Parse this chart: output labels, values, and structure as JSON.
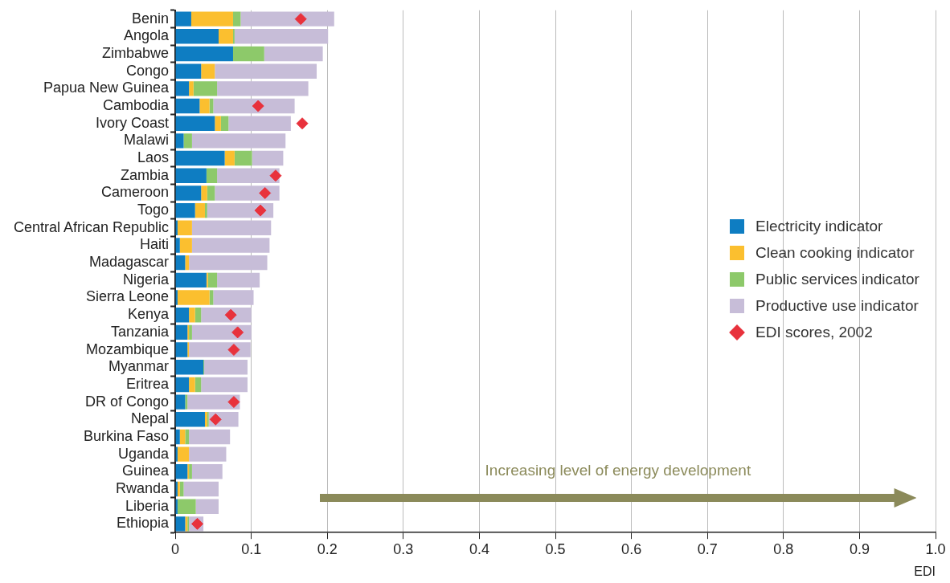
{
  "chart_data": {
    "type": "bar",
    "orientation": "horizontal",
    "stacked": true,
    "categories": [
      "Benin",
      "Angola",
      "Zimbabwe",
      "Congo",
      "Papua New Guinea",
      "Cambodia",
      "Ivory Coast",
      "Malawi",
      "Laos",
      "Zambia",
      "Cameroon",
      "Togo",
      "Central African Republic",
      "Haiti",
      "Madagascar",
      "Nigeria",
      "Sierra Leone",
      "Kenya",
      "Tanzania",
      "Mozambique",
      "Myanmar",
      "Eritrea",
      "DR of Congo",
      "Nepal",
      "Burkina Faso",
      "Uganda",
      "Guinea",
      "Rwanda",
      "Liberia",
      "Ethiopia"
    ],
    "series": [
      {
        "name": "Electricity indicator",
        "color": "#0e7dc2",
        "values": [
          0.021,
          0.057,
          0.076,
          0.034,
          0.018,
          0.032,
          0.052,
          0.011,
          0.065,
          0.041,
          0.034,
          0.026,
          0.003,
          0.006,
          0.013,
          0.041,
          0.003,
          0.018,
          0.016,
          0.016,
          0.037,
          0.018,
          0.013,
          0.039,
          0.006,
          0.003,
          0.016,
          0.003,
          0.003,
          0.013
        ]
      },
      {
        "name": "Clean cooking indicator",
        "color": "#fbbf2f",
        "values": [
          0.055,
          0.019,
          0,
          0.018,
          0.006,
          0.013,
          0.008,
          0,
          0.013,
          0,
          0.008,
          0.013,
          0.019,
          0.016,
          0.005,
          0.002,
          0.042,
          0.008,
          0.002,
          0.002,
          0,
          0.008,
          0,
          0.003,
          0.007,
          0.015,
          0.002,
          0.003,
          0,
          0.003
        ]
      },
      {
        "name": "Public services indicator",
        "color": "#8dc96a",
        "values": [
          0.01,
          0.002,
          0.041,
          0,
          0.031,
          0.005,
          0.01,
          0.011,
          0.023,
          0.014,
          0.01,
          0.003,
          0,
          0,
          0,
          0.012,
          0.005,
          0.008,
          0.004,
          0,
          0.001,
          0.008,
          0.003,
          0.002,
          0.005,
          0,
          0.004,
          0.005,
          0.024,
          0.002
        ]
      },
      {
        "name": "Productive use indicator",
        "color": "#c7bdd8",
        "values": [
          0.123,
          0.123,
          0.077,
          0.134,
          0.12,
          0.107,
          0.082,
          0.123,
          0.041,
          0.082,
          0.085,
          0.087,
          0.104,
          0.102,
          0.103,
          0.056,
          0.053,
          0.066,
          0.078,
          0.081,
          0.057,
          0.061,
          0.069,
          0.039,
          0.054,
          0.049,
          0.04,
          0.046,
          0.03,
          0.019
        ]
      },
      {
        "name": "EDI scores, 2002",
        "type": "scatter",
        "marker": "diamond",
        "color": "#e8323c",
        "values": [
          0.165,
          null,
          null,
          null,
          null,
          0.109,
          0.167,
          null,
          null,
          0.132,
          0.118,
          0.112,
          null,
          null,
          null,
          null,
          null,
          0.073,
          0.082,
          0.077,
          null,
          null,
          0.077,
          0.053,
          null,
          null,
          null,
          null,
          null,
          0.029
        ]
      }
    ],
    "xlabel": "EDI",
    "xlim": [
      0,
      1
    ],
    "xticks": [
      0,
      0.1,
      0.2,
      0.3,
      0.4,
      0.5,
      0.6,
      0.7,
      0.8,
      0.9,
      {
        "value": 1,
        "label": "1.0"
      }
    ],
    "grid": "x",
    "legend": "right",
    "annotations": [
      "Increasing level of energy development"
    ]
  }
}
